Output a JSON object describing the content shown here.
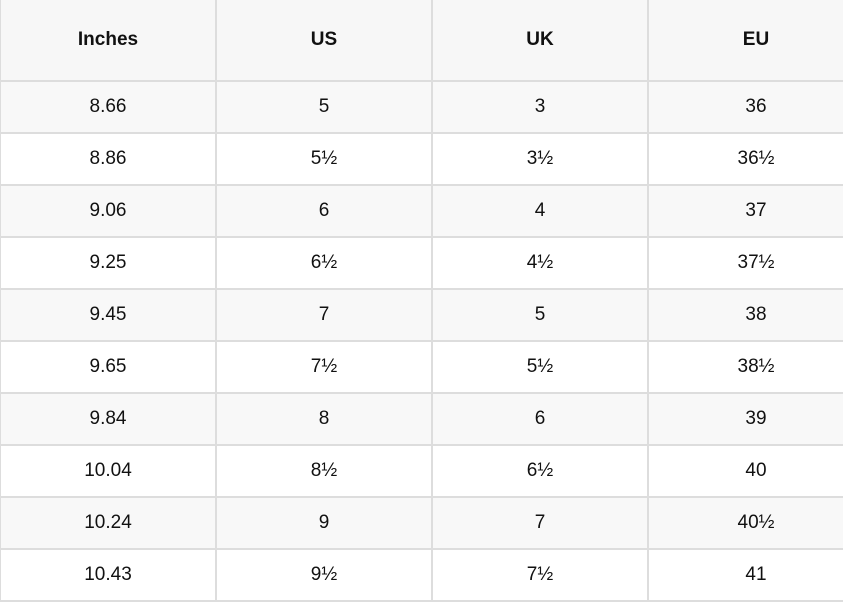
{
  "table": {
    "headers": [
      "Inches",
      "US",
      "UK",
      "EU"
    ],
    "rows": [
      [
        "8.66",
        "5",
        "3",
        "36"
      ],
      [
        "8.86",
        "5½",
        "3½",
        "36½"
      ],
      [
        "9.06",
        "6",
        "4",
        "37"
      ],
      [
        "9.25",
        "6½",
        "4½",
        "37½"
      ],
      [
        "9.45",
        "7",
        "5",
        "38"
      ],
      [
        "9.65",
        "7½",
        "5½",
        "38½"
      ],
      [
        "9.84",
        "8",
        "6",
        "39"
      ],
      [
        "10.04",
        "8½",
        "6½",
        "40"
      ],
      [
        "10.24",
        "9",
        "7",
        "40½"
      ],
      [
        "10.43",
        "9½",
        "7½",
        "41"
      ]
    ]
  }
}
